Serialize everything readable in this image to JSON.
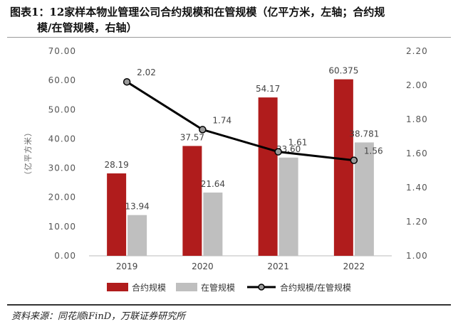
{
  "figure": {
    "title_line1": "图表1：12家样本物业管理公司合约规模和在管规模（亿平方米，左轴；合约规",
    "title_line2": "模/在管规模，右轴）",
    "source": "资料来源：同花顺iFinD，万联证券研究所"
  },
  "chart_data": {
    "type": "bar",
    "categories": [
      "2019",
      "2020",
      "2021",
      "2022"
    ],
    "series": [
      {
        "name": "合约规模",
        "kind": "bar",
        "axis": "left",
        "color": "#b01c1c",
        "values": [
          28.19,
          37.57,
          54.17,
          60.375
        ],
        "labels": [
          "28.19",
          "37.57",
          "54.17",
          "60.375"
        ]
      },
      {
        "name": "在管规模",
        "kind": "bar",
        "axis": "left",
        "color": "#bfbfbf",
        "values": [
          13.94,
          21.64,
          33.6,
          38.781
        ],
        "labels": [
          "13.94",
          "21.64",
          "33.60",
          "38.781"
        ]
      },
      {
        "name": "合约规模/在管规模",
        "kind": "line",
        "axis": "right",
        "color": "#000000",
        "values": [
          2.02,
          1.74,
          1.61,
          1.56
        ],
        "labels": [
          "2.02",
          "1.74",
          "1.61",
          "1.56"
        ]
      }
    ],
    "ylabel": "（亿平方米）",
    "ylim": [
      0,
      70
    ],
    "y_ticks": [
      "0.00",
      "10.00",
      "20.00",
      "30.00",
      "40.00",
      "50.00",
      "60.00",
      "70.00"
    ],
    "y2lim": [
      1.0,
      2.2
    ],
    "y2_ticks": [
      "1.00",
      "1.20",
      "1.40",
      "1.60",
      "1.80",
      "2.00",
      "2.20"
    ],
    "grid": false,
    "legend_position": "bottom"
  }
}
